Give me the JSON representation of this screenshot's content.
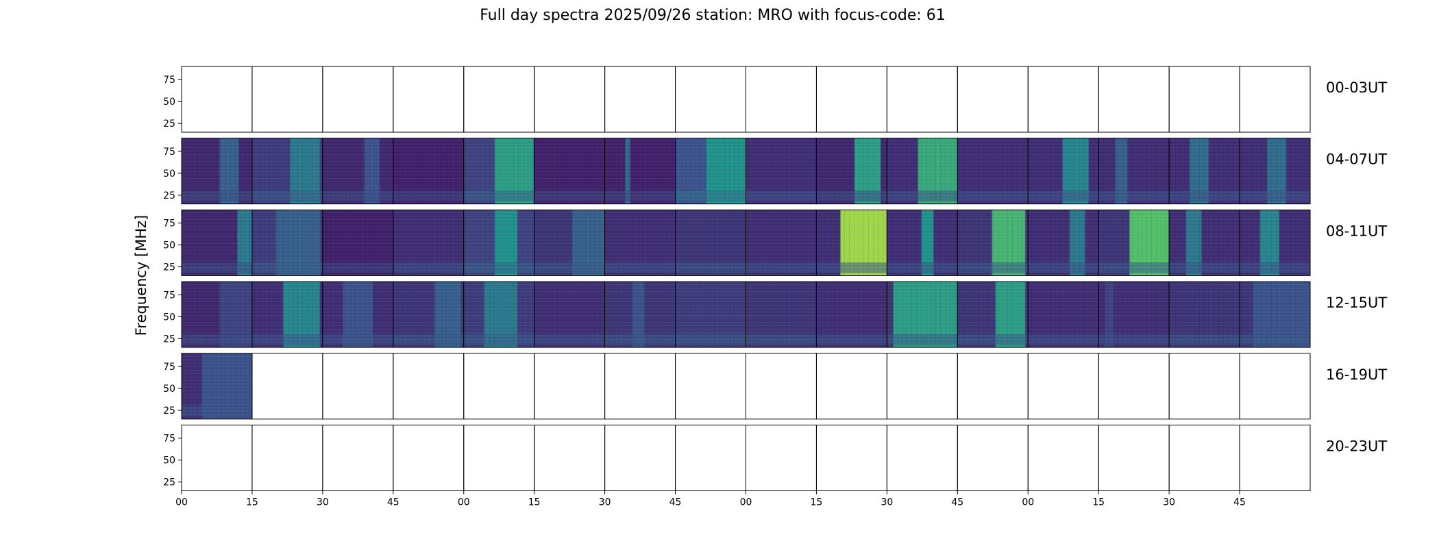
{
  "chart_data": {
    "type": "heatmap",
    "title": "Full day spectra 2025/09/26 station: MRO with focus-code: 61",
    "ylabel": "Frequency [MHz]",
    "ylim": [
      15,
      90
    ],
    "y_ticks": [
      "25",
      "50",
      "75"
    ],
    "y_tick_values": [
      25,
      50,
      75
    ],
    "x_tick_labels": [
      "00",
      "15",
      "30",
      "45",
      "00",
      "15",
      "30",
      "45",
      "00",
      "15",
      "30",
      "45",
      "00",
      "15",
      "30",
      "45"
    ],
    "panels_per_row": 16,
    "colormap": [
      "#440154",
      "#3b528b",
      "#21918c",
      "#5ec962",
      "#fde725"
    ],
    "rows": [
      {
        "label": "00-03UT",
        "panels": [
          {
            "has_data": false
          },
          {
            "has_data": false
          },
          {
            "has_data": false
          },
          {
            "has_data": false
          },
          {
            "has_data": false
          },
          {
            "has_data": false
          },
          {
            "has_data": false
          },
          {
            "has_data": false
          },
          {
            "has_data": false
          },
          {
            "has_data": false
          },
          {
            "has_data": false
          },
          {
            "has_data": false
          },
          {
            "has_data": false
          },
          {
            "has_data": false
          },
          {
            "has_data": false
          },
          {
            "has_data": false
          }
        ]
      },
      {
        "label": "04-07UT",
        "panels": [
          {
            "has_data": true,
            "base": 0.12,
            "bursts": [
              {
                "start": 0.55,
                "end": 0.8,
                "level": 0.3
              }
            ]
          },
          {
            "has_data": true,
            "base": 0.18,
            "bursts": [
              {
                "start": 0.55,
                "end": 0.95,
                "level": 0.4
              }
            ]
          },
          {
            "has_data": true,
            "base": 0.12,
            "bursts": [
              {
                "start": 0.6,
                "end": 0.8,
                "level": 0.25
              }
            ]
          },
          {
            "has_data": true,
            "base": 0.1,
            "bursts": []
          },
          {
            "has_data": true,
            "base": 0.2,
            "bursts": [
              {
                "start": 0.45,
                "end": 0.98,
                "level": 0.55
              }
            ]
          },
          {
            "has_data": true,
            "base": 0.1,
            "bursts": []
          },
          {
            "has_data": true,
            "base": 0.1,
            "bursts": [
              {
                "start": 0.3,
                "end": 0.35,
                "level": 0.35
              }
            ]
          },
          {
            "has_data": true,
            "base": 0.25,
            "bursts": [
              {
                "start": 0.45,
                "end": 1.0,
                "level": 0.5
              }
            ]
          },
          {
            "has_data": true,
            "base": 0.14,
            "bursts": []
          },
          {
            "has_data": true,
            "base": 0.12,
            "bursts": [
              {
                "start": 0.55,
                "end": 0.9,
                "level": 0.55
              }
            ]
          },
          {
            "has_data": true,
            "base": 0.14,
            "bursts": [
              {
                "start": 0.45,
                "end": 1.0,
                "level": 0.6
              }
            ]
          },
          {
            "has_data": true,
            "base": 0.14,
            "bursts": []
          },
          {
            "has_data": true,
            "base": 0.14,
            "bursts": [
              {
                "start": 0.5,
                "end": 0.85,
                "level": 0.45
              }
            ]
          },
          {
            "has_data": true,
            "base": 0.14,
            "bursts": [
              {
                "start": 0.25,
                "end": 0.4,
                "level": 0.3
              }
            ]
          },
          {
            "has_data": true,
            "base": 0.14,
            "bursts": [
              {
                "start": 0.3,
                "end": 0.55,
                "level": 0.35
              }
            ]
          },
          {
            "has_data": true,
            "base": 0.14,
            "bursts": [
              {
                "start": 0.4,
                "end": 0.65,
                "level": 0.35
              }
            ]
          }
        ]
      },
      {
        "label": "08-11UT",
        "panels": [
          {
            "has_data": true,
            "base": 0.12,
            "bursts": [
              {
                "start": 0.8,
                "end": 1.0,
                "level": 0.4
              }
            ]
          },
          {
            "has_data": true,
            "base": 0.18,
            "bursts": [
              {
                "start": 0.35,
                "end": 0.95,
                "level": 0.3
              }
            ]
          },
          {
            "has_data": true,
            "base": 0.1,
            "bursts": []
          },
          {
            "has_data": true,
            "base": 0.14,
            "bursts": []
          },
          {
            "has_data": true,
            "base": 0.2,
            "bursts": [
              {
                "start": 0.45,
                "end": 0.75,
                "level": 0.5
              }
            ]
          },
          {
            "has_data": true,
            "base": 0.16,
            "bursts": [
              {
                "start": 0.55,
                "end": 1.0,
                "level": 0.3
              }
            ]
          },
          {
            "has_data": true,
            "base": 0.14,
            "bursts": []
          },
          {
            "has_data": true,
            "base": 0.16,
            "bursts": []
          },
          {
            "has_data": true,
            "base": 0.14,
            "bursts": []
          },
          {
            "has_data": true,
            "base": 0.14,
            "bursts": [
              {
                "start": 0.35,
                "end": 1.0,
                "level": 0.85
              }
            ]
          },
          {
            "has_data": true,
            "base": 0.14,
            "bursts": [
              {
                "start": 0.5,
                "end": 0.65,
                "level": 0.5
              }
            ]
          },
          {
            "has_data": true,
            "base": 0.16,
            "bursts": [
              {
                "start": 0.5,
                "end": 0.95,
                "level": 0.65
              }
            ]
          },
          {
            "has_data": true,
            "base": 0.14,
            "bursts": [
              {
                "start": 0.6,
                "end": 0.8,
                "level": 0.4
              }
            ]
          },
          {
            "has_data": true,
            "base": 0.16,
            "bursts": [
              {
                "start": 0.45,
                "end": 1.0,
                "level": 0.7
              }
            ]
          },
          {
            "has_data": true,
            "base": 0.14,
            "bursts": [
              {
                "start": 0.25,
                "end": 0.45,
                "level": 0.4
              }
            ]
          },
          {
            "has_data": true,
            "base": 0.14,
            "bursts": [
              {
                "start": 0.3,
                "end": 0.55,
                "level": 0.45
              }
            ]
          }
        ]
      },
      {
        "label": "12-15UT",
        "panels": [
          {
            "has_data": true,
            "base": 0.12,
            "bursts": [
              {
                "start": 0.55,
                "end": 1.0,
                "level": 0.2
              }
            ]
          },
          {
            "has_data": true,
            "base": 0.14,
            "bursts": [
              {
                "start": 0.45,
                "end": 0.95,
                "level": 0.45
              }
            ]
          },
          {
            "has_data": true,
            "base": 0.14,
            "bursts": [
              {
                "start": 0.3,
                "end": 0.7,
                "level": 0.25
              }
            ]
          },
          {
            "has_data": true,
            "base": 0.16,
            "bursts": [
              {
                "start": 0.6,
                "end": 0.95,
                "level": 0.3
              }
            ]
          },
          {
            "has_data": true,
            "base": 0.18,
            "bursts": [
              {
                "start": 0.3,
                "end": 0.75,
                "level": 0.4
              }
            ]
          },
          {
            "has_data": true,
            "base": 0.14,
            "bursts": []
          },
          {
            "has_data": true,
            "base": 0.16,
            "bursts": [
              {
                "start": 0.4,
                "end": 0.55,
                "level": 0.25
              }
            ]
          },
          {
            "has_data": true,
            "base": 0.18,
            "bursts": []
          },
          {
            "has_data": true,
            "base": 0.16,
            "bursts": []
          },
          {
            "has_data": true,
            "base": 0.14,
            "bursts": []
          },
          {
            "has_data": true,
            "base": 0.16,
            "bursts": [
              {
                "start": 0.1,
                "end": 1.0,
                "level": 0.55
              }
            ]
          },
          {
            "has_data": true,
            "base": 0.16,
            "bursts": [
              {
                "start": 0.55,
                "end": 0.95,
                "level": 0.55
              }
            ]
          },
          {
            "has_data": true,
            "base": 0.14,
            "bursts": []
          },
          {
            "has_data": true,
            "base": 0.14,
            "bursts": [
              {
                "start": 0.1,
                "end": 0.2,
                "level": 0.2
              }
            ]
          },
          {
            "has_data": true,
            "base": 0.16,
            "bursts": []
          },
          {
            "has_data": true,
            "base": 0.16,
            "bursts": [
              {
                "start": 0.2,
                "end": 1.0,
                "level": 0.25
              }
            ]
          }
        ]
      },
      {
        "label": "16-19UT",
        "panels": [
          {
            "has_data": true,
            "base": 0.14,
            "bursts": [
              {
                "start": 0.3,
                "end": 1.0,
                "level": 0.25
              }
            ]
          },
          {
            "has_data": false
          },
          {
            "has_data": false
          },
          {
            "has_data": false
          },
          {
            "has_data": false
          },
          {
            "has_data": false
          },
          {
            "has_data": false
          },
          {
            "has_data": false
          },
          {
            "has_data": false
          },
          {
            "has_data": false
          },
          {
            "has_data": false
          },
          {
            "has_data": false
          },
          {
            "has_data": false
          },
          {
            "has_data": false
          },
          {
            "has_data": false
          },
          {
            "has_data": false
          }
        ]
      },
      {
        "label": "20-23UT",
        "panels": [
          {
            "has_data": false
          },
          {
            "has_data": false
          },
          {
            "has_data": false
          },
          {
            "has_data": false
          },
          {
            "has_data": false
          },
          {
            "has_data": false
          },
          {
            "has_data": false
          },
          {
            "has_data": false
          },
          {
            "has_data": false
          },
          {
            "has_data": false
          },
          {
            "has_data": false
          },
          {
            "has_data": false
          },
          {
            "has_data": false
          },
          {
            "has_data": false
          },
          {
            "has_data": false
          },
          {
            "has_data": false
          }
        ]
      }
    ]
  }
}
